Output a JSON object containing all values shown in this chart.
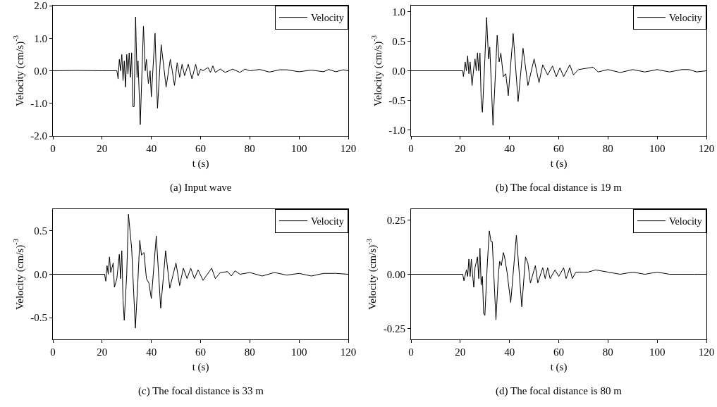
{
  "chart_data": [
    {
      "type": "line",
      "xlabel": "t (s)",
      "ylabel": "Velocity (cm/s)$^{-3}$",
      "annotations": [
        "(a) Input wave"
      ],
      "legend": "top right",
      "marker": "none",
      "line_style": "solid",
      "grid": false,
      "xlim": [
        0,
        120
      ],
      "xticks": [
        0,
        20,
        40,
        60,
        80,
        100,
        120
      ],
      "ylim": [
        -2,
        2
      ],
      "yticks": [
        {
          "value": -2,
          "label": "-2.0"
        },
        {
          "value": -1,
          "label": "-1.0"
        },
        {
          "value": 0,
          "label": "0.0"
        },
        {
          "value": 1,
          "label": "1.0"
        },
        {
          "value": 2,
          "label": "2.0"
        }
      ],
      "series": [
        {
          "name": "Velocity",
          "color": "#000000",
          "x": [
            0,
            10,
            20,
            26,
            26.5,
            27,
            27.5,
            28,
            28.5,
            29,
            29.5,
            30,
            30.5,
            31,
            31.5,
            32,
            32.5,
            33,
            33.6,
            34.2,
            34.6,
            35.5,
            36.8,
            37.5,
            38,
            38.8,
            39.5,
            40,
            41.5,
            42.5,
            44,
            46,
            47.7,
            48.5,
            49.4,
            50.5,
            51.5,
            52.5,
            53.5,
            55,
            56.5,
            58,
            59,
            60,
            61,
            63,
            64,
            65,
            66,
            68,
            70,
            73,
            76,
            78,
            80,
            84,
            88,
            92,
            95,
            100,
            105,
            110,
            112,
            115,
            118,
            120
          ],
          "values": [
            0,
            0.01,
            0,
            0,
            -0.25,
            0.35,
            0,
            0.5,
            -0.3,
            0.3,
            -0.5,
            0.5,
            -0.1,
            0.55,
            -0.2,
            0.55,
            -1.1,
            -1.1,
            1.65,
            -0.2,
            0.3,
            -1.65,
            1.37,
            0,
            0.35,
            -0.4,
            0,
            -0.8,
            1.15,
            -1.15,
            0.8,
            -0.5,
            0.35,
            0,
            -0.45,
            0.25,
            -0.2,
            0.2,
            -0.15,
            0.2,
            -0.25,
            0.2,
            -0.15,
            0.05,
            0,
            0.1,
            -0.05,
            0.15,
            -0.05,
            0.05,
            -0.05,
            0.05,
            -0.05,
            0.05,
            0,
            0.04,
            -0.04,
            0.03,
            0.03,
            -0.03,
            0.02,
            -0.03,
            0.04,
            -0.03,
            0.03,
            0
          ]
        }
      ]
    },
    {
      "type": "line",
      "xlabel": "t (s)",
      "ylabel": "Velocity (cm/s)$^{-3}$",
      "annotations": [
        "(b) The focal distance is 19 m"
      ],
      "legend": "top right",
      "marker": "none",
      "line_style": "solid",
      "grid": false,
      "xlim": [
        0,
        120
      ],
      "xticks": [
        0,
        20,
        40,
        60,
        80,
        100,
        120
      ],
      "ylim": [
        -1.1,
        1.1
      ],
      "yticks": [
        {
          "value": -1,
          "label": "-1.0"
        },
        {
          "value": -0.5,
          "label": "-0.5"
        },
        {
          "value": 0,
          "label": "0.0"
        },
        {
          "value": 0.5,
          "label": "0.5"
        },
        {
          "value": 1,
          "label": "1.0"
        }
      ],
      "series": [
        {
          "name": "Velocity",
          "color": "#000000",
          "x": [
            0,
            21,
            21.3,
            22,
            22.5,
            23,
            23.5,
            24,
            24.8,
            25.5,
            26,
            26.5,
            27,
            27.5,
            28,
            28.5,
            29,
            30,
            30.7,
            31.5,
            32,
            33.3,
            34,
            35,
            35.8,
            36.5,
            37.5,
            38.5,
            39.5,
            41.5,
            43.5,
            45.5,
            47.5,
            50,
            52,
            53.5,
            55.5,
            57.5,
            59,
            60.5,
            62,
            64.5,
            66,
            68,
            71,
            74,
            76,
            80,
            85,
            90,
            95,
            100,
            105,
            110,
            113,
            116,
            120
          ],
          "values": [
            0,
            0,
            -0.1,
            0.15,
            0,
            0.25,
            -0.05,
            0.15,
            -0.25,
            0.05,
            0.2,
            0,
            0.3,
            0,
            0.3,
            -0.5,
            -0.7,
            0.2,
            0.9,
            0.2,
            0.4,
            -0.92,
            -0.3,
            0.6,
            0.15,
            0.3,
            -0.1,
            -0.05,
            -0.42,
            0.63,
            -0.52,
            0.38,
            -0.25,
            0.2,
            -0.2,
            0.1,
            -0.07,
            0.08,
            -0.1,
            0.05,
            -0.1,
            0.1,
            -0.07,
            0.02,
            0.04,
            0.06,
            -0.02,
            0.02,
            -0.03,
            0.02,
            -0.02,
            0.02,
            -0.02,
            0.02,
            0.02,
            -0.02,
            0
          ]
        }
      ]
    },
    {
      "type": "line",
      "xlabel": "t (s)",
      "ylabel": "Velocity (cm/s)$^{-3}$",
      "annotations": [
        "(c) The focal distance is 33 m"
      ],
      "legend": "top right",
      "marker": "none",
      "line_style": "solid",
      "grid": false,
      "xlim": [
        0,
        120
      ],
      "xticks": [
        0,
        20,
        40,
        60,
        80,
        100,
        120
      ],
      "ylim": [
        -0.75,
        0.75
      ],
      "yticks": [
        {
          "value": -0.5,
          "label": "-0.5"
        },
        {
          "value": 0,
          "label": "0.0"
        },
        {
          "value": 0.5,
          "label": "0.5"
        }
      ],
      "series": [
        {
          "name": "Velocity",
          "color": "#000000",
          "x": [
            0,
            21,
            21.5,
            22,
            22.5,
            23,
            23.5,
            24.5,
            25,
            26,
            27,
            27.5,
            28,
            28.5,
            29,
            30,
            30.7,
            31.5,
            32,
            33.5,
            34.5,
            35.3,
            36,
            37,
            38,
            39,
            40,
            42,
            43.8,
            45.8,
            47.5,
            50,
            51.5,
            53,
            54.5,
            56,
            57.5,
            59,
            61,
            64.5,
            66,
            68,
            71,
            72.5,
            74,
            76,
            80,
            85,
            90,
            95,
            100,
            105,
            110,
            115,
            120
          ],
          "values": [
            0,
            0,
            -0.08,
            0.1,
            0,
            0.2,
            0.02,
            0.13,
            -0.15,
            -0.05,
            0.23,
            -0.05,
            0.27,
            -0.3,
            -0.53,
            0,
            0.69,
            0.45,
            0.3,
            -0.62,
            -0.1,
            0.39,
            0.22,
            0.25,
            -0.05,
            -0.1,
            -0.28,
            0.44,
            -0.39,
            0.27,
            -0.16,
            0.13,
            -0.13,
            0.07,
            -0.05,
            0.07,
            -0.05,
            0.05,
            -0.07,
            0.07,
            -0.05,
            0.02,
            0.03,
            -0.02,
            0.04,
            0,
            0.02,
            -0.02,
            0.02,
            -0.01,
            0.01,
            -0.02,
            0.01,
            0.01,
            0
          ]
        }
      ]
    },
    {
      "type": "line",
      "xlabel": "t (s)",
      "ylabel": "Velocity (cm/s)$^{-3}$",
      "annotations": [
        "(d) The focal distance is 80 m"
      ],
      "legend": "top right",
      "marker": "none",
      "line_style": "solid",
      "grid": false,
      "xlim": [
        0,
        120
      ],
      "xticks": [
        0,
        20,
        40,
        60,
        80,
        100,
        120
      ],
      "ylim": [
        -0.3,
        0.3
      ],
      "yticks": [
        {
          "value": -0.25,
          "label": "-0.25"
        },
        {
          "value": 0,
          "label": "0.00"
        },
        {
          "value": 0.25,
          "label": "0.25"
        }
      ],
      "series": [
        {
          "name": "Velocity",
          "color": "#000000",
          "x": [
            0,
            21,
            21.5,
            22.5,
            23,
            23.5,
            24,
            24.5,
            25,
            25.5,
            26,
            27,
            27.5,
            28,
            28.5,
            29,
            29.5,
            30,
            31,
            31.8,
            32.5,
            33,
            34.5,
            35.5,
            36,
            36.7,
            37.5,
            38,
            39,
            40.5,
            42.8,
            45,
            46.5,
            47.5,
            48.5,
            50.5,
            51.5,
            53.5,
            54.5,
            55.5,
            56.5,
            58.5,
            60,
            62,
            63,
            64.5,
            65.5,
            67,
            70,
            72,
            75,
            80,
            85,
            90,
            95,
            100,
            105,
            110,
            115,
            120
          ],
          "values": [
            0,
            0,
            -0.03,
            0.02,
            -0.01,
            0.07,
            -0.01,
            0.07,
            0,
            -0.06,
            0.03,
            0.08,
            -0.02,
            0.12,
            -0.05,
            -0.01,
            -0.18,
            -0.19,
            0.05,
            0.2,
            0.15,
            0.15,
            -0.21,
            0,
            0.06,
            0.04,
            0.1,
            0.08,
            0.01,
            -0.13,
            0.18,
            -0.15,
            0.08,
            0.05,
            -0.04,
            0.04,
            -0.04,
            0.03,
            -0.02,
            0.03,
            -0.02,
            0.02,
            -0.01,
            0.03,
            -0.02,
            0.03,
            -0.02,
            0.01,
            0.01,
            0.01,
            0.02,
            0.01,
            0,
            0.01,
            0,
            0.01,
            0,
            0,
            0,
            0
          ]
        }
      ]
    }
  ]
}
